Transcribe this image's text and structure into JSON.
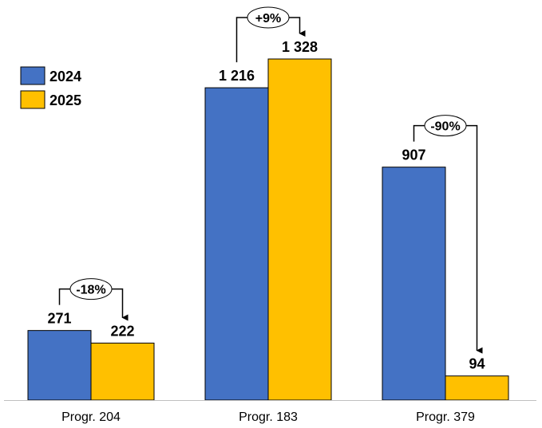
{
  "chart_data": {
    "type": "bar",
    "title": "",
    "xlabel": "",
    "ylabel": "",
    "categories": [
      "Progr. 204",
      "Progr. 183",
      "Progr. 379"
    ],
    "series": [
      {
        "name": "2024",
        "values": [
          271,
          1216,
          907
        ],
        "labels": [
          "271",
          "1 216",
          "907"
        ],
        "color": "#4472C4"
      },
      {
        "name": "2025",
        "values": [
          222,
          1328,
          94
        ],
        "labels": [
          "222",
          "1 328",
          "94"
        ],
        "color": "#FFC000"
      }
    ],
    "annotations": [
      "-18%",
      "+9%",
      "-90%"
    ],
    "ylim": [
      0,
      1328
    ],
    "grid": false,
    "legend": "top-left"
  }
}
